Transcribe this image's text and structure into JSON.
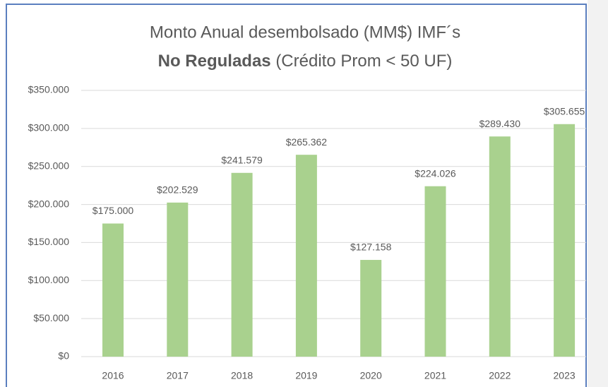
{
  "chart_data": {
    "type": "bar",
    "title": "Monto Anual desembolsado (MM$) IMF´s",
    "subtitle_bold": "No Reguladas",
    "subtitle": "(Crédito Prom < 50 UF)",
    "categories": [
      "2016",
      "2017",
      "2018",
      "2019",
      "2020",
      "2021",
      "2022",
      "2023"
    ],
    "values": [
      175000,
      202529,
      241579,
      265362,
      127158,
      224026,
      289430,
      305655
    ],
    "value_labels": [
      "$175.000",
      "$202.529",
      "$241.579",
      "$265.362",
      "$127.158",
      "$224.026",
      "$289.430",
      "$305.655"
    ],
    "color": "#a9d18e",
    "ylim": [
      0,
      350000
    ],
    "yticks": [
      {
        "value": 0,
        "label": "$0"
      },
      {
        "value": 50000,
        "label": "$50.000"
      },
      {
        "value": 100000,
        "label": "$100.000"
      },
      {
        "value": 150000,
        "label": "$150.000"
      },
      {
        "value": 200000,
        "label": "$200.000"
      },
      {
        "value": 250000,
        "label": "$250.000"
      },
      {
        "value": 300000,
        "label": "$300.000"
      },
      {
        "value": 350000,
        "label": "$350.000"
      }
    ],
    "grid": true
  }
}
